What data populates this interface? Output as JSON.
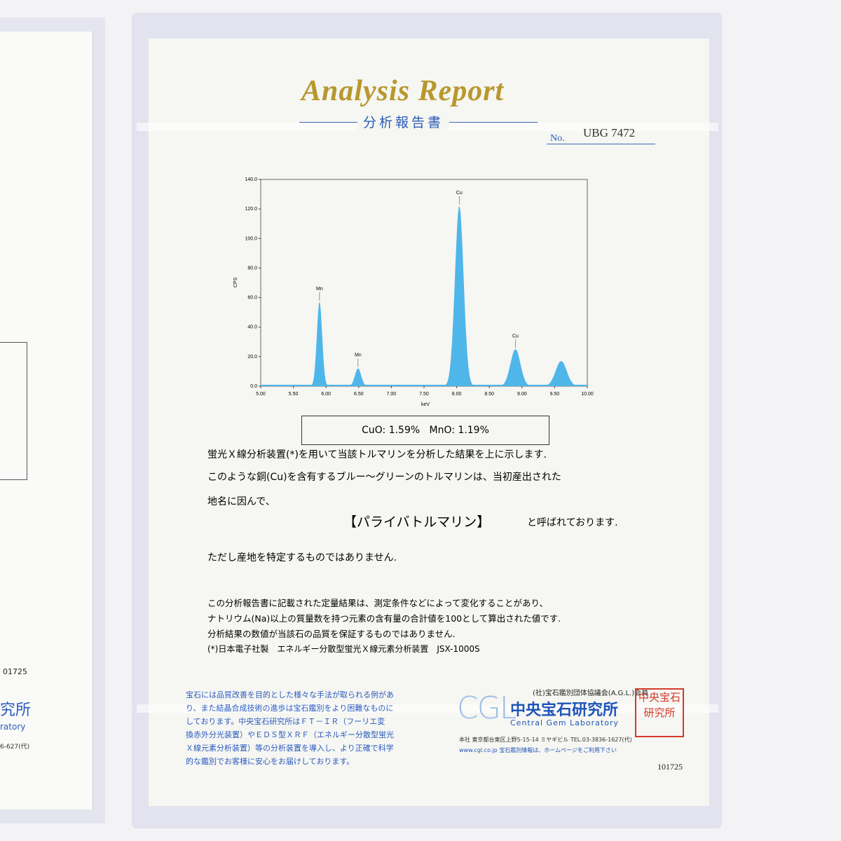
{
  "header": {
    "title": "Analysis Report",
    "subtitle": "分析報告書",
    "number_label": "No.",
    "number": "UBG 7472"
  },
  "spectrum": {
    "ylabel": "CPS",
    "xlabel": "keV",
    "color": "#4fb6ea",
    "xlim": [
      5,
      10
    ],
    "ylim": [
      0,
      140
    ],
    "xticks": [
      {
        "value": 5,
        "label": "5.00"
      },
      {
        "value": 5.5,
        "label": "5.50"
      },
      {
        "value": 6,
        "label": "6.00"
      },
      {
        "value": 6.5,
        "label": "6.50"
      },
      {
        "value": 7,
        "label": "7.00"
      },
      {
        "value": 7.5,
        "label": "7.50"
      },
      {
        "value": 8,
        "label": "8.00"
      },
      {
        "value": 8.5,
        "label": "8.50"
      },
      {
        "value": 9,
        "label": "9.00"
      },
      {
        "value": 9.5,
        "label": "9.50"
      },
      {
        "value": 10,
        "label": "10.00"
      }
    ],
    "yticks": [
      {
        "value": 0,
        "label": "0.0"
      },
      {
        "value": 20,
        "label": "20.0"
      },
      {
        "value": 40,
        "label": "40.0"
      },
      {
        "value": 60,
        "label": "60.0"
      },
      {
        "value": 80,
        "label": "80.0"
      },
      {
        "value": 100,
        "label": "100.0"
      },
      {
        "value": 120,
        "label": "120.0"
      },
      {
        "value": 140,
        "label": "140.0"
      }
    ],
    "peaks": [
      {
        "label": "Mn",
        "kev": 5.9,
        "cps": 57
      },
      {
        "label": "Mn",
        "kev": 6.49,
        "cps": 12
      },
      {
        "label": "Cu",
        "kev": 8.04,
        "cps": 122
      },
      {
        "label": "Cu",
        "kev": 8.9,
        "cps": 25
      },
      {
        "label": null,
        "kev": 9.6,
        "cps": 17
      }
    ]
  },
  "result": "CuO: 1.59%   MnO: 1.19%",
  "body": [
    "蛍光Ｘ線分析装置(*)を用いて当該トルマリンを分析した結果を上に示します.",
    "このような銅(Cu)を含有するブルー～グリーンのトルマリンは、当初産出された",
    "地名に因んで、"
  ],
  "name_line": {
    "name": "【パライバトルマリン】",
    "suffix": "と呼ばれております."
  },
  "disclaimer": "ただし産地を特定するものではありません.",
  "notes": [
    "この分析報告書に記載された定量結果は、測定条件などによって変化することがあり、",
    "ナトリウム(Na)以上の質量数を持つ元素の含有量の合計値を100として算出された値です.",
    "分析結果の数値が当該石の品質を保証するものではありません.",
    "(*)日本電子社製　エネルギー分散型蛍光Ｘ線元素分析装置　JSX-1000S"
  ],
  "footer": {
    "left_lines": [
      "宝石には品質改善を目的とした様々な手法が取られる例があ",
      "り、また結晶合成技術の進歩は宝石鑑別をより困難なものに",
      "しております。中央宝石研究所はＦＴ－ＩＲ（フーリエ変",
      "換赤外分光装置）やＥＤＳ型ＸＲＦ（エネルギー分散型蛍光",
      "Ｘ線元素分析装置）等の分析装置を導入し、より正確で科学",
      "的な鑑別でお客様に安心をお届けしております。"
    ],
    "association": "(社)宝石鑑別団体協議会(A.G.L.)会員",
    "logo": "CGL",
    "lab_ja": "中央宝石研究所",
    "lab_en": "Central Gem Laboratory",
    "address": "本社 東京都台東区上野5-15-14 ミヤギビル TEL.03-3836-1627(代)",
    "web": "www.cgl.co.jp 宝石鑑別情報は、ホームページをご利用下さい",
    "serial": "101725",
    "stamp": "中央宝石研究所"
  },
  "left_page": {
    "serial": "01725",
    "lab": "究所",
    "lab_en": "ratory",
    "phone": "6-627(代)"
  }
}
